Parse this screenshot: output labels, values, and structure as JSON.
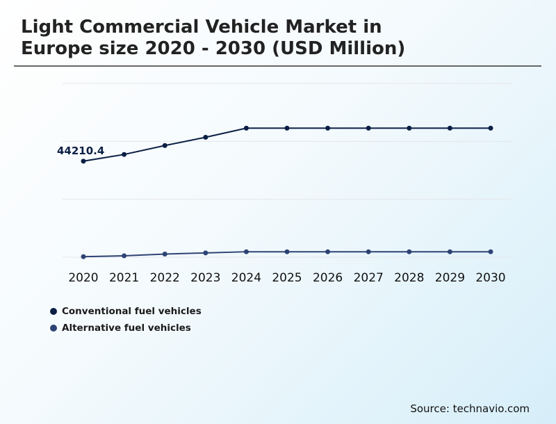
{
  "title_line1": "Light Commercial Vehicle Market in",
  "title_line2": "Europe size 2020 - 2030 (USD Million)",
  "source": "Source: technavio.com",
  "colors": {
    "conventional": "#0b1f45",
    "alternative": "#2e4374",
    "grid": "#e3e6ea"
  },
  "chart_data": {
    "type": "line",
    "title": "Light Commercial Vehicle Market in Europe size 2020 - 2030 (USD Million)",
    "x": [
      "2020",
      "2021",
      "2022",
      "2023",
      "2024",
      "2025",
      "2026",
      "2027",
      "2028",
      "2029",
      "2030"
    ],
    "ylim": [
      0,
      80000
    ],
    "grid": true,
    "legend_position": "bottom-left",
    "series": [
      {
        "name": "Conventional fuel vehicles",
        "color": "#0b1f45",
        "values": [
          44210.4,
          47300,
          51400,
          55200,
          59400,
          59400,
          59400,
          59400,
          59400,
          59400,
          59400
        ]
      },
      {
        "name": "Alternative fuel vehicles",
        "color": "#2e4374",
        "values": [
          250,
          650,
          1450,
          1950,
          2500,
          2500,
          2500,
          2500,
          2500,
          2500,
          2500
        ]
      }
    ],
    "annotations": [
      {
        "series": 0,
        "index": 0,
        "text": "44210.4"
      }
    ]
  }
}
